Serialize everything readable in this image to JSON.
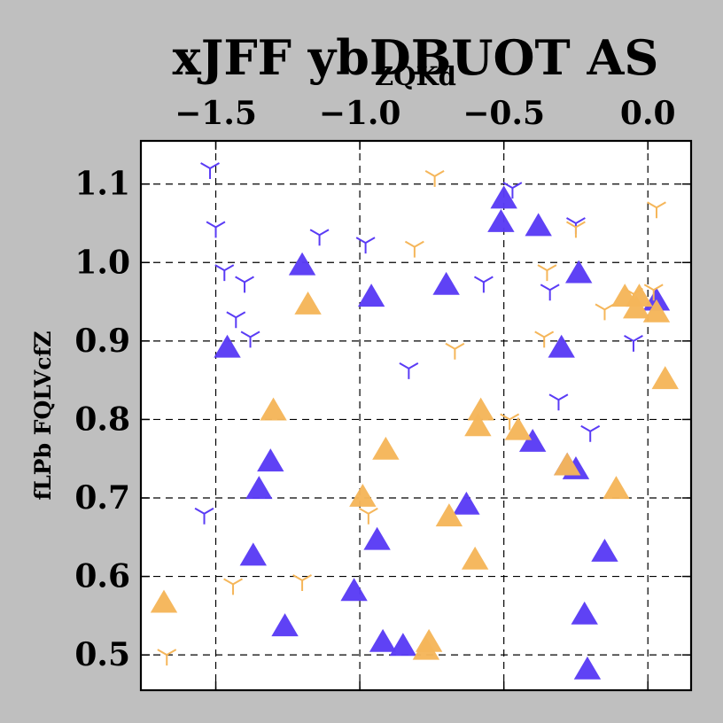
{
  "chart_data": {
    "type": "scatter",
    "title": "xJFF ybDBUOT AS",
    "xlabel": "ZQKd",
    "ylabel": "fLPb FQLVcfZ",
    "xlim": [
      -1.76,
      0.15
    ],
    "ylim": [
      0.455,
      1.155
    ],
    "x_ticks": [
      -1.5,
      -1.0,
      -0.5,
      0.0
    ],
    "x_tick_labels": [
      "−1.5",
      "−1.0",
      "−0.5",
      "0.0"
    ],
    "y_ticks": [
      0.5,
      0.6,
      0.7,
      0.8,
      0.9,
      1.0,
      1.1
    ],
    "y_tick_labels": [
      "0.5",
      "0.6",
      "0.7",
      "0.8",
      "0.9",
      "1.0",
      "1.1"
    ],
    "x_axis_position": "top",
    "grid": true,
    "colors": {
      "blue": "#5a3cf5",
      "orange": "#f5b65a"
    },
    "series": [
      {
        "color": "#5a3cf5",
        "marker": "triangle",
        "x": [
          -1.46,
          -1.37,
          -1.35,
          -1.31,
          -1.26,
          -1.2,
          -1.02,
          -0.96,
          -0.94,
          -0.92,
          -0.85,
          -0.7,
          -0.63,
          -0.5,
          -0.51,
          -0.4,
          -0.38,
          -0.3,
          -0.28,
          -0.25,
          -0.24,
          -0.22,
          -0.21,
          -0.15,
          0.03
        ],
        "y": [
          0.89,
          0.625,
          0.71,
          0.745,
          0.535,
          0.995,
          0.58,
          0.955,
          0.645,
          0.515,
          0.51,
          0.97,
          0.69,
          1.08,
          1.05,
          0.77,
          1.045,
          0.89,
          0.74,
          0.735,
          0.985,
          0.55,
          0.48,
          0.63,
          0.95
        ]
      },
      {
        "color": "#5a3cf5",
        "marker": "tri_down",
        "x": [
          -1.54,
          -1.52,
          -1.5,
          -1.47,
          -1.43,
          -1.4,
          -1.38,
          -1.14,
          -0.98,
          -0.83,
          -0.57,
          -0.47,
          -0.34,
          -0.31,
          -0.25,
          -0.2,
          -0.05
        ],
        "y": [
          0.68,
          1.12,
          1.045,
          0.99,
          0.93,
          0.975,
          0.905,
          1.035,
          1.025,
          0.865,
          0.975,
          1.095,
          0.965,
          0.825,
          1.05,
          0.785,
          0.9
        ]
      },
      {
        "color": "#f5b65a",
        "marker": "triangle",
        "x": [
          -1.68,
          -1.3,
          -1.18,
          -0.99,
          -0.91,
          -0.77,
          -0.76,
          -0.69,
          -0.6,
          -0.58,
          -0.59,
          -0.45,
          -0.28,
          -0.11,
          -0.08,
          -0.04,
          -0.03,
          0.03,
          0.06
        ],
        "y": [
          0.565,
          0.81,
          0.945,
          0.7,
          0.76,
          0.505,
          0.515,
          0.675,
          0.62,
          0.81,
          0.79,
          0.785,
          0.74,
          0.71,
          0.955,
          0.94,
          0.955,
          0.935,
          0.85
        ]
      },
      {
        "color": "#f5b65a",
        "marker": "tri_down",
        "x": [
          -1.67,
          -1.44,
          -1.2,
          -0.97,
          -0.81,
          -0.74,
          -0.67,
          -0.48,
          -0.35,
          -0.36,
          -0.25,
          -0.15,
          -0.05,
          0.02,
          0.03
        ],
        "y": [
          0.5,
          0.59,
          0.595,
          0.68,
          1.02,
          1.11,
          0.89,
          0.8,
          0.99,
          0.905,
          1.045,
          0.94,
          0.96,
          0.965,
          1.07
        ]
      }
    ]
  }
}
